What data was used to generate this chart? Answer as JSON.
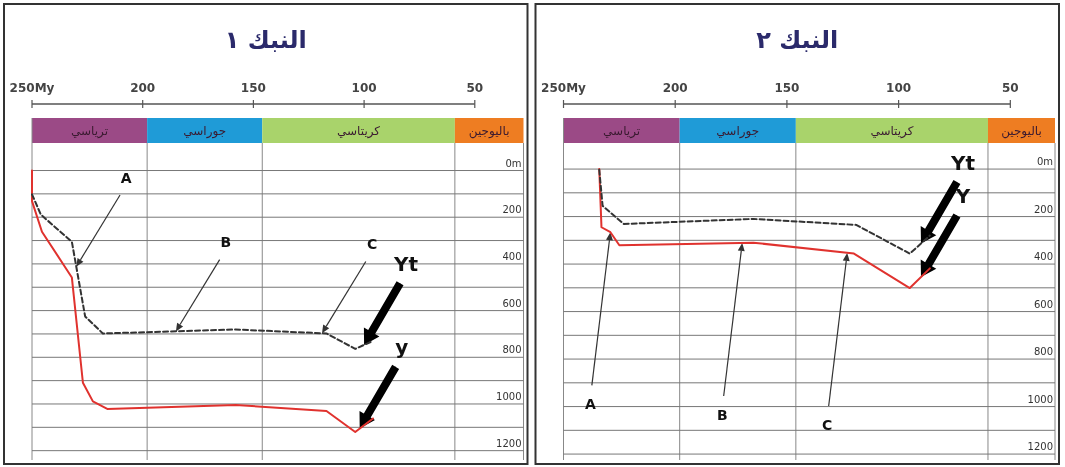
{
  "chart_data": [
    {
      "type": "line",
      "title": "النبك ١",
      "xlim": [
        250,
        28
      ],
      "ylim": [
        1240,
        -225
      ],
      "xticks": [
        {
          "value": 250,
          "label": "250My"
        },
        200,
        150,
        100,
        50
      ],
      "yticks": [
        {
          "value": 0,
          "label": "0m"
        },
        {
          "value": 100,
          "label": null
        },
        200,
        {
          "value": 300,
          "label": null
        },
        400,
        {
          "value": 500,
          "label": null
        },
        600,
        {
          "value": 700,
          "label": null
        },
        800,
        {
          "value": 900,
          "label": null
        },
        1000,
        {
          "value": 1100,
          "label": null
        },
        1200
      ],
      "grid": "y",
      "bands": [
        {
          "axis": "x",
          "from": 250,
          "to": 198,
          "label": "ترياسي",
          "color": "#9b4a86"
        },
        {
          "axis": "x",
          "from": 198,
          "to": 146,
          "label": "جوراسي",
          "color": "#1f9bd7"
        },
        {
          "axis": "x",
          "from": 146,
          "to": 59,
          "label": "كريتاسي",
          "color": "#a9d36b"
        },
        {
          "axis": "x",
          "from": 59,
          "to": 28,
          "label": "باليوجين",
          "color": "#ee7d22"
        }
      ],
      "series": [
        {
          "color": "#e0322e",
          "line_style": "solid",
          "x": [
            250,
            250,
            245.5,
            232,
            227,
            222.5,
            216,
            158,
            117,
            104,
            96
          ],
          "values": [
            0,
            131,
            262,
            458,
            909,
            989,
            1021,
            1004,
            1030,
            1120,
            1062
          ]
        },
        {
          "color": "#333333",
          "line_style": "dashed",
          "x": [
            250,
            246,
            232,
            226,
            218,
            158,
            117,
            104,
            96
          ],
          "values": [
            102,
            189,
            305,
            625,
            698,
            681,
            698,
            764,
            730
          ]
        }
      ],
      "annotations": [
        {
          "text": "A",
          "x": 230,
          "y": 412
        },
        {
          "text": "B",
          "x": 185,
          "y": 689
        },
        {
          "text": "C",
          "x": 119,
          "y": 697
        },
        {
          "text": "Yt",
          "x": 100,
          "y": 747
        },
        {
          "text": "y",
          "x": 102,
          "y": 1105
        }
      ]
    },
    {
      "type": "line",
      "title": "النبك ٢",
      "xlim": [
        250,
        30
      ],
      "ylim": [
        1225,
        -215
      ],
      "xticks": [
        {
          "value": 250,
          "label": "250My"
        },
        200,
        150,
        100,
        50
      ],
      "yticks": [
        {
          "value": 0,
          "label": "0m"
        },
        {
          "value": 100,
          "label": null
        },
        200,
        {
          "value": 300,
          "label": null
        },
        400,
        {
          "value": 500,
          "label": null
        },
        600,
        {
          "value": 700,
          "label": null
        },
        800,
        {
          "value": 900,
          "label": null
        },
        1000,
        {
          "value": 1100,
          "label": null
        },
        1200
      ],
      "grid": "y",
      "bands": [
        {
          "axis": "x",
          "from": 250,
          "to": 198,
          "label": "ترياسي",
          "color": "#9b4a86"
        },
        {
          "axis": "x",
          "from": 198,
          "to": 146,
          "label": "جوراسي",
          "color": "#1f9bd7"
        },
        {
          "axis": "x",
          "from": 146,
          "to": 60,
          "label": "كريتاسي",
          "color": "#a9d36b"
        },
        {
          "axis": "x",
          "from": 60,
          "to": 30,
          "label": "باليوجين",
          "color": "#ee7d22"
        }
      ],
      "series": [
        {
          "color": "#e0322e",
          "line_style": "solid",
          "x": [
            234,
            233,
            229,
            225,
            165,
            120,
            95,
            86
          ],
          "values": [
            0,
            245,
            266,
            321,
            310,
            356,
            501,
            418
          ]
        },
        {
          "color": "#333333",
          "line_style": "dashed",
          "x": [
            234,
            232.5,
            223,
            165,
            119,
            95,
            86
          ],
          "values": [
            3,
            155,
            231,
            210,
            235,
            356,
            280
          ]
        }
      ],
      "annotations": [
        {
          "text": "A",
          "x": 229,
          "y": 266
        },
        {
          "text": "B",
          "x": 170,
          "y": 311
        },
        {
          "text": "C",
          "x": 123,
          "y": 353
        },
        {
          "text": "Yt",
          "x": 90,
          "y": 314
        },
        {
          "text": "Y",
          "x": 90,
          "y": 455
        }
      ]
    }
  ]
}
